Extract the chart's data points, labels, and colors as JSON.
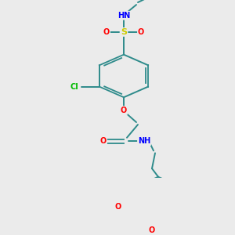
{
  "background_color": "#ebebeb",
  "bond_color": "#2e8b8b",
  "atom_colors": {
    "N": "#0000ff",
    "O": "#ff0000",
    "S": "#cccc00",
    "Cl": "#00bb00",
    "C": "#2e8b8b",
    "H": "#808080"
  },
  "figsize": [
    3.0,
    3.0
  ],
  "dpi": 100
}
